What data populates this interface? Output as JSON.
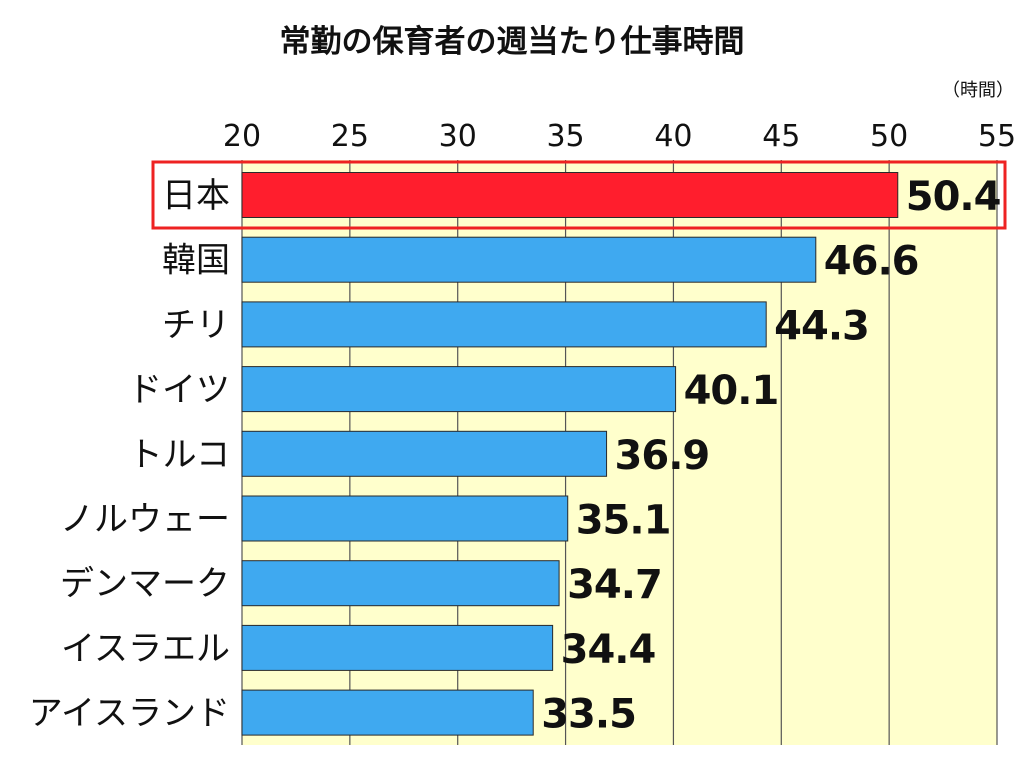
{
  "chart_data": {
    "type": "bar",
    "orientation": "horizontal",
    "title": "常勤の保育者の週当たり仕事時間",
    "unit_label": "（時間）",
    "categories": [
      "日本",
      "韓国",
      "チリ",
      "ドイツ",
      "トルコ",
      "ノルウェー",
      "デンマーク",
      "イスラエル",
      "アイスランド"
    ],
    "values": [
      50.4,
      46.6,
      44.3,
      40.1,
      36.9,
      35.1,
      34.7,
      34.4,
      33.5
    ],
    "value_labels": [
      "50.4",
      "46.6",
      "44.3",
      "40.1",
      "36.9",
      "35.1",
      "34.7",
      "34.4",
      "33.5"
    ],
    "xlim": [
      20,
      55
    ],
    "ticks": [
      "20",
      "25",
      "30",
      "35",
      "40",
      "45",
      "50",
      "55"
    ],
    "tick_values": [
      20,
      25,
      30,
      35,
      40,
      45,
      50,
      55
    ],
    "highlight_index": 0,
    "grid": true,
    "colors": {
      "bar": "#3fa9f0",
      "highlight_bar": "#ff1e2d",
      "highlight_box": "#ee2222",
      "plot_background": "#ffffcc",
      "grid": "#555555"
    }
  }
}
